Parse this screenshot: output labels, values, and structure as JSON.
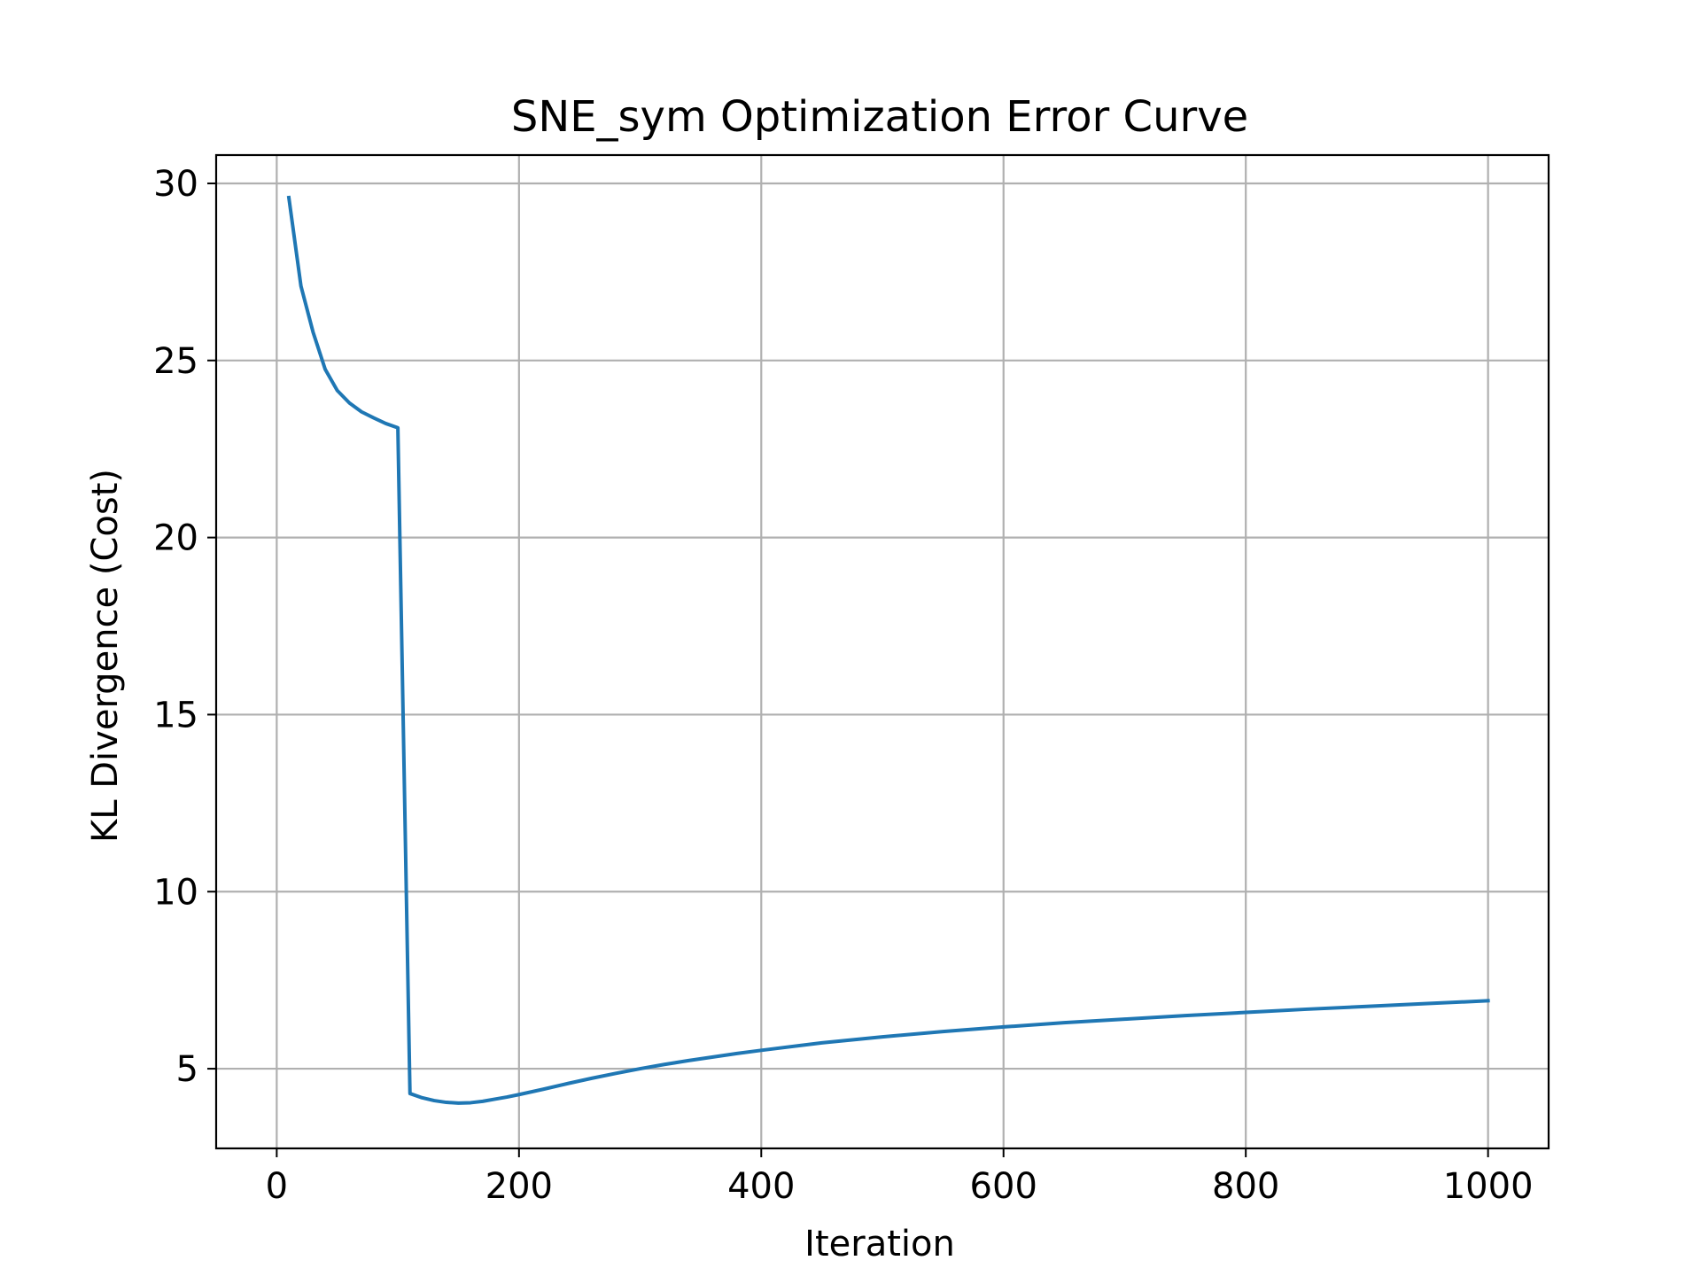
{
  "chart_data": {
    "type": "line",
    "title": "SNE_sym Optimization Error Curve",
    "xlabel": "Iteration",
    "ylabel": "KL Divergence (Cost)",
    "xlim": [
      -50,
      1050
    ],
    "ylim": [
      2.75,
      30.8
    ],
    "xticks": [
      0,
      200,
      400,
      600,
      800,
      1000
    ],
    "yticks": [
      5,
      10,
      15,
      20,
      25,
      30
    ],
    "grid": true,
    "line_color": "#1f77b4",
    "series": [
      {
        "x": [
          10,
          20,
          30,
          40,
          50,
          60,
          70,
          80,
          90,
          100,
          110,
          120,
          130,
          140,
          150,
          160,
          170,
          180,
          190,
          200,
          220,
          240,
          260,
          280,
          300,
          320,
          340,
          360,
          380,
          400,
          450,
          500,
          550,
          600,
          650,
          700,
          750,
          800,
          850,
          900,
          950,
          1000
        ],
        "y": [
          29.6,
          27.1,
          25.8,
          24.75,
          24.15,
          23.8,
          23.55,
          23.38,
          23.22,
          23.1,
          4.3,
          4.18,
          4.1,
          4.05,
          4.03,
          4.04,
          4.08,
          4.14,
          4.2,
          4.27,
          4.42,
          4.58,
          4.73,
          4.87,
          5.0,
          5.12,
          5.23,
          5.33,
          5.43,
          5.52,
          5.73,
          5.9,
          6.05,
          6.18,
          6.3,
          6.4,
          6.5,
          6.59,
          6.68,
          6.76,
          6.84,
          6.92
        ]
      }
    ]
  }
}
